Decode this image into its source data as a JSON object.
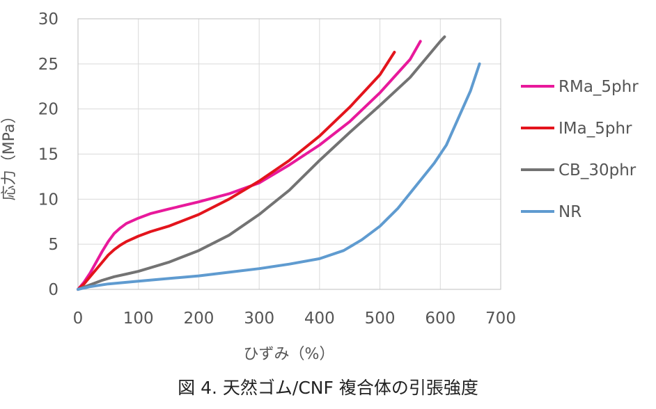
{
  "chart_data": {
    "type": "line",
    "title": "",
    "xlabel": "ひずみ（%）",
    "ylabel": "応力（MPa）",
    "xlim": [
      0,
      700
    ],
    "ylim": [
      0,
      30
    ],
    "x_ticks": [
      "0",
      "100",
      "200",
      "300",
      "400",
      "500",
      "600",
      "700"
    ],
    "y_ticks": [
      "0",
      "5",
      "10",
      "15",
      "20",
      "25",
      "30"
    ],
    "grid": true,
    "legend_position": "right",
    "series": [
      {
        "name": "RMa_5phr",
        "color": "#e8199b",
        "points": [
          [
            0,
            0
          ],
          [
            10,
            0.8
          ],
          [
            20,
            1.8
          ],
          [
            30,
            3
          ],
          [
            40,
            4.2
          ],
          [
            50,
            5.3
          ],
          [
            60,
            6.2
          ],
          [
            70,
            6.8
          ],
          [
            80,
            7.3
          ],
          [
            100,
            7.9
          ],
          [
            120,
            8.4
          ],
          [
            150,
            8.9
          ],
          [
            200,
            9.7
          ],
          [
            250,
            10.6
          ],
          [
            300,
            11.8
          ],
          [
            350,
            13.8
          ],
          [
            400,
            16
          ],
          [
            450,
            18.6
          ],
          [
            500,
            21.8
          ],
          [
            550,
            25.5
          ],
          [
            567,
            27.5
          ]
        ]
      },
      {
        "name": "IMa_5phr",
        "color": "#e3141c",
        "points": [
          [
            0,
            0
          ],
          [
            10,
            0.6
          ],
          [
            20,
            1.4
          ],
          [
            30,
            2.2
          ],
          [
            40,
            3
          ],
          [
            50,
            3.8
          ],
          [
            60,
            4.4
          ],
          [
            70,
            4.9
          ],
          [
            80,
            5.3
          ],
          [
            100,
            5.9
          ],
          [
            120,
            6.4
          ],
          [
            150,
            7
          ],
          [
            200,
            8.3
          ],
          [
            250,
            10
          ],
          [
            300,
            12
          ],
          [
            350,
            14.3
          ],
          [
            400,
            17
          ],
          [
            450,
            20.2
          ],
          [
            500,
            23.8
          ],
          [
            524,
            26.3
          ]
        ]
      },
      {
        "name": "CB_30phr",
        "color": "#737373",
        "points": [
          [
            0,
            0
          ],
          [
            20,
            0.5
          ],
          [
            40,
            1
          ],
          [
            60,
            1.4
          ],
          [
            80,
            1.7
          ],
          [
            100,
            2
          ],
          [
            150,
            3
          ],
          [
            200,
            4.3
          ],
          [
            250,
            6
          ],
          [
            300,
            8.3
          ],
          [
            350,
            11
          ],
          [
            400,
            14.3
          ],
          [
            450,
            17.4
          ],
          [
            500,
            20.4
          ],
          [
            550,
            23.5
          ],
          [
            600,
            27.5
          ],
          [
            607,
            28
          ]
        ]
      },
      {
        "name": "NR",
        "color": "#5f9bd0",
        "points": [
          [
            0,
            0
          ],
          [
            20,
            0.3
          ],
          [
            50,
            0.6
          ],
          [
            100,
            0.9
          ],
          [
            150,
            1.2
          ],
          [
            200,
            1.5
          ],
          [
            250,
            1.9
          ],
          [
            300,
            2.3
          ],
          [
            350,
            2.8
          ],
          [
            400,
            3.4
          ],
          [
            440,
            4.3
          ],
          [
            470,
            5.5
          ],
          [
            500,
            7
          ],
          [
            530,
            9
          ],
          [
            560,
            11.5
          ],
          [
            590,
            14
          ],
          [
            610,
            16
          ],
          [
            630,
            19
          ],
          [
            650,
            22
          ],
          [
            665,
            25
          ]
        ]
      }
    ]
  },
  "caption": "図 4. 天然ゴム/CNF 複合体の引張強度"
}
